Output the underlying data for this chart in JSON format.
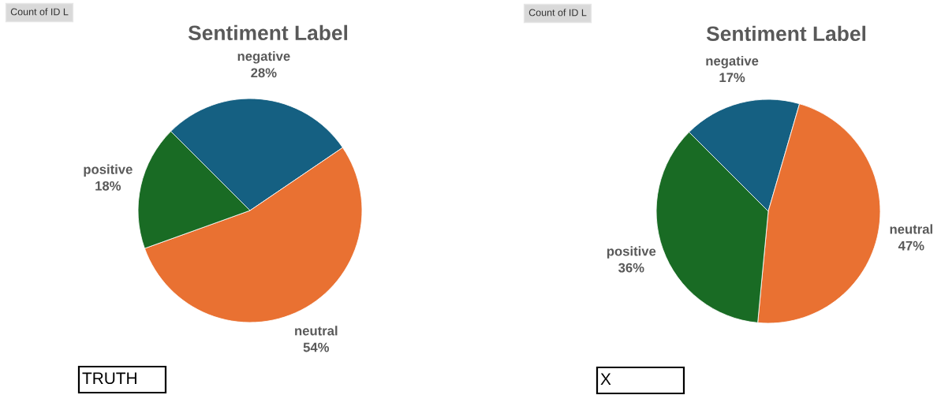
{
  "chart_data": [
    {
      "type": "pie",
      "title": "Sentiment Label",
      "categories": [
        "negative",
        "neutral",
        "positive"
      ],
      "values": [
        28,
        54,
        18
      ],
      "colors": [
        "#156082",
        "#e97132",
        "#196b24"
      ],
      "value_labels": [
        "28%",
        "54%",
        "18%"
      ],
      "annotations": [
        "Count of ID L",
        "TRUTH"
      ]
    },
    {
      "type": "pie",
      "title": "Sentiment Label",
      "categories": [
        "negative",
        "neutral",
        "positive"
      ],
      "values": [
        17,
        47,
        36
      ],
      "colors": [
        "#156082",
        "#e97132",
        "#196b24"
      ],
      "value_labels": [
        "17%",
        "47%",
        "36%"
      ],
      "annotations": [
        "Count of ID L",
        "X"
      ]
    }
  ]
}
